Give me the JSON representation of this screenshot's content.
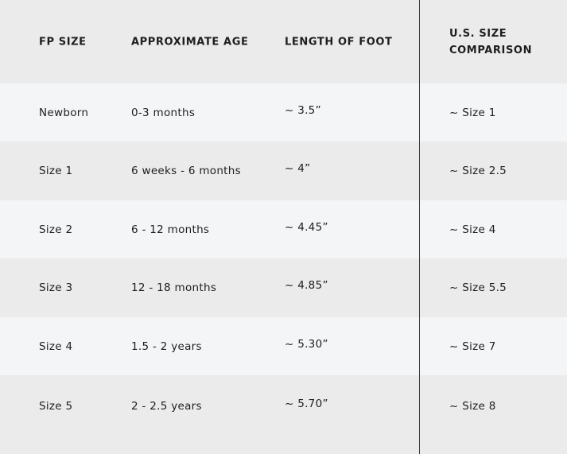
{
  "table": {
    "headers": [
      "FP SIZE",
      "APPROXIMATE AGE",
      "LENGTH OF FOOT",
      "U.S. SIZE",
      "COMPARISON"
    ],
    "rows": [
      [
        "Newborn",
        "0-3 months",
        "~ 3.5”",
        "~ Size 1"
      ],
      [
        "Size 1",
        "6 weeks - 6 months",
        "~ 4”",
        "~ Size 2.5"
      ],
      [
        "Size 2",
        "6 - 12 months",
        "~ 4.45”",
        "~ Size 4"
      ],
      [
        "Size 3",
        "12 - 18 months",
        "~ 4.85”",
        "~ Size 5.5"
      ],
      [
        "Size 4",
        "1.5 - 2 years",
        "~ 5.30”",
        "~ Size 7"
      ],
      [
        "Size 5",
        "2 - 2.5 years",
        "~ 5.70”",
        "~ Size 8"
      ]
    ]
  },
  "colors": {
    "header_bg": "#ebebeb",
    "row_light": "#f4f5f7",
    "row_dark": "#ebebeb",
    "text": "#1e1e1e",
    "divider": "#3a3a3a"
  }
}
